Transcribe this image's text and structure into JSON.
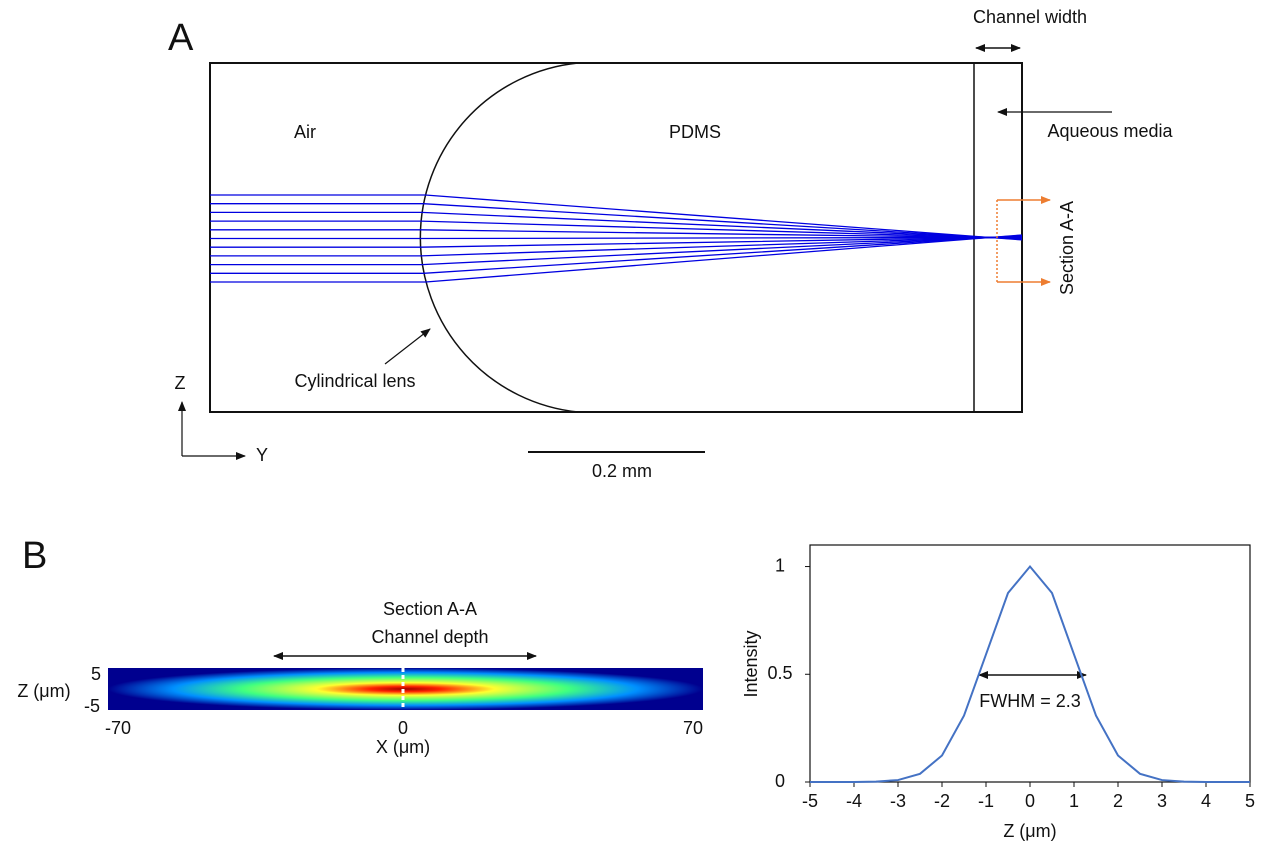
{
  "panel_a": {
    "label": "A",
    "air": "Air",
    "pdms": "PDMS",
    "channel_width": "Channel width",
    "aqueous": "Aqueous media",
    "section": "Section A-A",
    "lens": "Cylindrical lens",
    "axis_z": "Z",
    "axis_y": "Y",
    "scale_bar": "0.2 mm"
  },
  "panel_b": {
    "label": "B",
    "section": "Section A-A",
    "depth": "Channel depth",
    "y_label": "Z (μm)",
    "y_top": "5",
    "y_bottom": "-5",
    "x_label": "X (μm)",
    "x_left": "-70",
    "x_mid": "0",
    "x_right": "70"
  },
  "chart_data": {
    "type": "line",
    "x_label": "Z (μm)",
    "y_label": "Intensity",
    "annotation": "FWHM = 2.3",
    "x": [
      -5,
      -4.5,
      -4,
      -3.5,
      -3,
      -2.5,
      -2,
      -1.5,
      -1,
      -0.5,
      0,
      0.5,
      1,
      1.5,
      2,
      2.5,
      3,
      3.5,
      4,
      4.5,
      5
    ],
    "series": [
      {
        "name": "Intensity",
        "color": "#4472c4",
        "values": [
          0,
          0,
          0,
          0.002,
          0.009,
          0.038,
          0.123,
          0.308,
          0.592,
          0.877,
          1,
          0.877,
          0.592,
          0.308,
          0.123,
          0.038,
          0.009,
          0.002,
          0,
          0,
          0
        ]
      }
    ],
    "xlim": [
      -5,
      5
    ],
    "ylim": [
      0,
      1.1
    ],
    "xticks": [
      -5,
      -4,
      -3,
      -2,
      -1,
      0,
      1,
      2,
      3,
      4,
      5
    ],
    "yticks": [
      0,
      0.5,
      1
    ]
  }
}
